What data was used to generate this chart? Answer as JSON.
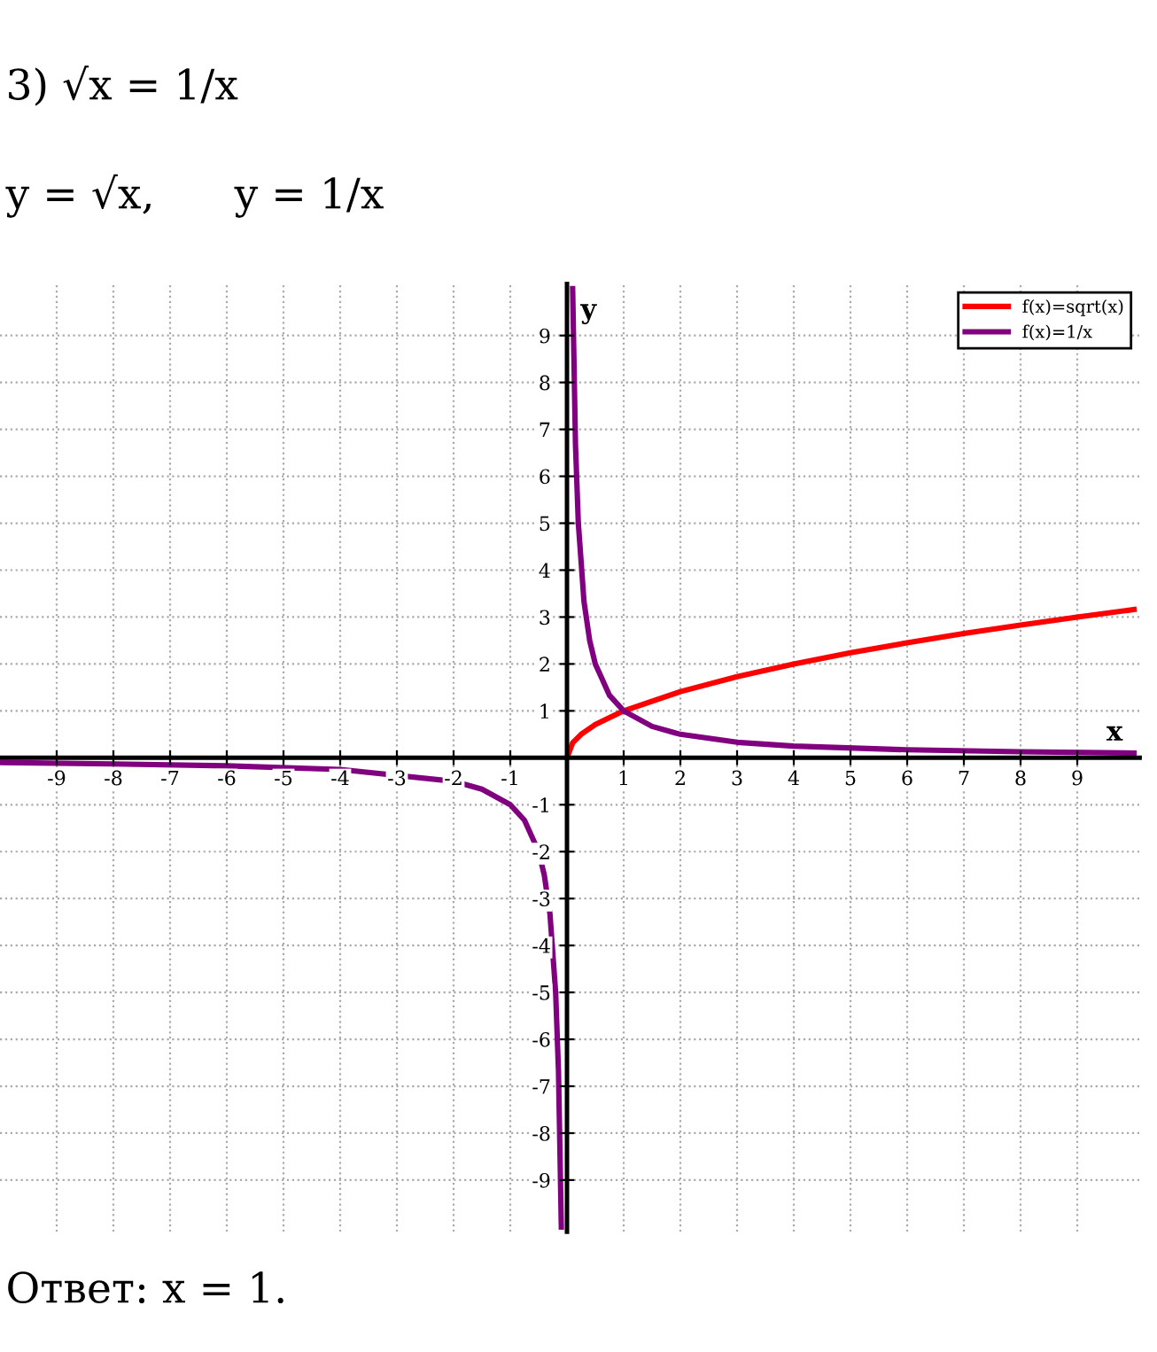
{
  "chart_data": {
    "type": "line",
    "title": "3) √x = 1/x",
    "subtitle": "y = √x,      y = 1/x",
    "xlabel": "x",
    "ylabel": "y",
    "annotations": [
      "Ответ: x = 1."
    ],
    "series": [
      {
        "name": "f(x)=sqrt(x)",
        "color": "#ff0000",
        "x": [
          0,
          0.1,
          0.25,
          0.5,
          1,
          2,
          3,
          4,
          5,
          6,
          7,
          8,
          9,
          10
        ],
        "values": [
          0,
          0.32,
          0.5,
          0.71,
          1,
          1.41,
          1.73,
          2,
          2.24,
          2.45,
          2.65,
          2.83,
          3,
          3.16
        ]
      },
      {
        "name": "f(x)=1/x",
        "color": "#800080",
        "x": [
          -10,
          -8,
          -6,
          -4,
          -2,
          -1.5,
          -1,
          -0.75,
          -0.5,
          -0.4,
          -0.3,
          -0.2,
          -0.15,
          -0.1,
          0,
          0.1,
          0.15,
          0.2,
          0.3,
          0.4,
          0.5,
          0.75,
          1,
          1.5,
          2,
          3,
          4,
          6,
          8,
          10
        ],
        "values": [
          -0.1,
          -0.13,
          -0.17,
          -0.25,
          -0.5,
          -0.67,
          -1,
          -1.33,
          -2,
          -2.5,
          -3.33,
          -5,
          -6.67,
          -10,
          null,
          10,
          6.67,
          5,
          3.33,
          2.5,
          2,
          1.33,
          1,
          0.67,
          0.5,
          0.33,
          0.25,
          0.17,
          0.13,
          0.1
        ]
      }
    ],
    "xlim": [
      -10,
      10.1
    ],
    "ylim": [
      -10.1,
      10.1
    ],
    "xticks": [
      -9,
      -8,
      -7,
      -6,
      -5,
      -4,
      -3,
      -2,
      -1,
      1,
      2,
      3,
      4,
      5,
      6,
      7,
      8,
      9
    ],
    "yticks": [
      -9,
      -8,
      -7,
      -6,
      -5,
      -4,
      -3,
      -2,
      -1,
      1,
      2,
      3,
      4,
      5,
      6,
      7,
      8,
      9
    ],
    "grid": true,
    "legend": "top right",
    "marker": "none",
    "line_style": "solid"
  }
}
